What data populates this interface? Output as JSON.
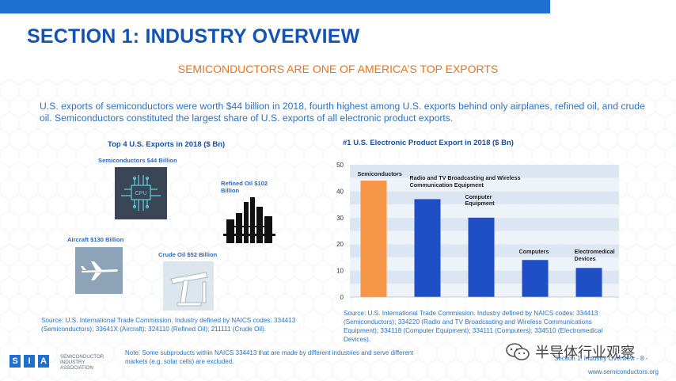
{
  "title": "SECTION 1: INDUSTRY OVERVIEW",
  "subtitle": "SEMICONDUCTORS ARE ONE OF AMERICA’S TOP EXPORTS",
  "intro": "U.S. exports of semiconductors were worth $44 billion in 2018, fourth highest among U.S. exports behind only airplanes, refined oil, and crude oil.  Semiconductors constituted the largest share of U.S. exports of all electronic product exports.",
  "left_panel": {
    "title": "Top 4 U.S. Exports in 2018 ($ Bn)",
    "items": [
      {
        "label": "Semiconductors $44 Billion",
        "icon": "cpu-icon",
        "icon_text": "CPU"
      },
      {
        "label": "Refined Oil $102 Billion",
        "icon": "refinery-icon"
      },
      {
        "label": "Aircraft $130 Billion",
        "icon": "airplane-icon"
      },
      {
        "label": "Crude Oil $52 Billion",
        "icon": "oil-pump-icon"
      }
    ],
    "source": "Source: U.S. International Trade Commission. Industry defined by NAICS codes: 334413 (Semiconductors); 33641X (Aircraft); 324110 (Refined Oil); 211111 (Crude Oil)."
  },
  "chart_data": {
    "type": "bar",
    "title": "#1 U.S. Electronic Product Export in 2018 ($ Bn)",
    "categories": [
      "Semiconductors",
      "Radio and TV Broadcasting and Wireless Communication Equipment",
      "Computer Equipment",
      "Computers",
      "Electromedical Devices"
    ],
    "values": [
      44,
      37,
      30,
      14,
      11
    ],
    "ylim": [
      0,
      50
    ],
    "yticks": [
      "0",
      "10",
      "20",
      "30",
      "40",
      "50"
    ],
    "grid": true,
    "legend": "none",
    "colors": {
      "highlight": "#f79646",
      "bar": "#1f4fc4",
      "grid_band": "#dce6f2",
      "axis_text": "#333333"
    },
    "source": "Source: U.S. International Trade Commission. Industry defined by NAICS codes: 334413 (Semiconductors); 334220 (Radio and TV Broadcasting and Wireless Communications Equipment); 334118 (Computer Equipment); 334111 (Computers); 334510 (Electromedical Devices)."
  },
  "note": "Note: Some subproducts within NAICS 334413 that are made by different industries and serve different markets (e.g. solar cells) are excluded.",
  "footer": {
    "logo_letters": [
      "S",
      "I",
      "A"
    ],
    "logo_text": "SEMICONDUCTOR INDUSTRY ASSOCIATION",
    "section_text": "Section 1: Industry Overview - 8 -",
    "url": "www.semiconductors.org",
    "watermark": "半导体行业观察"
  },
  "colors": {
    "title": "#1452b3",
    "subtitle": "#e8731f",
    "text": "#2b72c0",
    "topbar": "#1f6fd0"
  }
}
